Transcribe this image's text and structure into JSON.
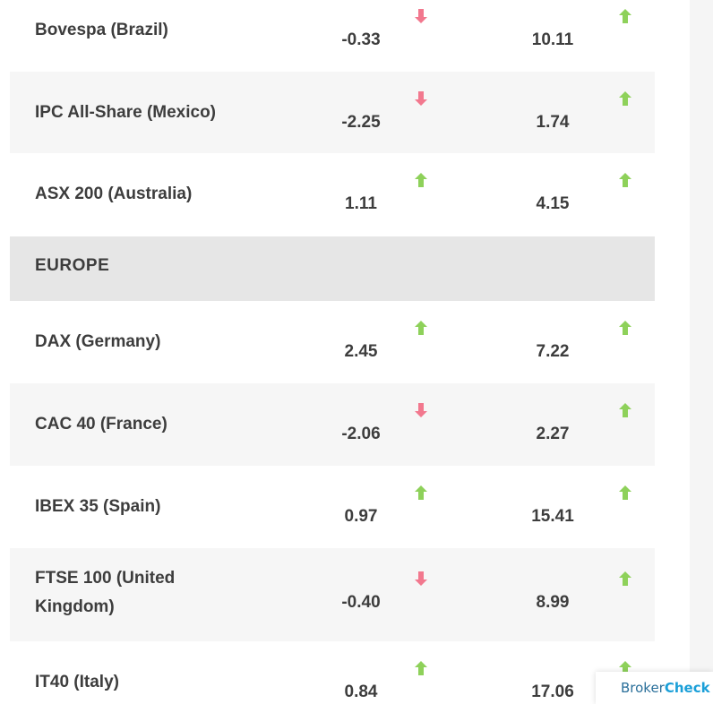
{
  "colors": {
    "up": "#8ed15a",
    "down": "#f2788e",
    "text": "#3d3d3d",
    "alt_row": "#f6f6f6",
    "region_row": "#e6e6e6"
  },
  "rows_top": [
    {
      "name": "Bovespa (Brazil)",
      "v1": "-0.33",
      "d1": "down",
      "v2": "10.11",
      "d2": "up"
    },
    {
      "name": "IPC All-Share (Mexico)",
      "v1": "-2.25",
      "d1": "down",
      "v2": "1.74",
      "d2": "up"
    },
    {
      "name": "ASX 200 (Australia)",
      "v1": "1.11",
      "d1": "up",
      "v2": "4.15",
      "d2": "up"
    }
  ],
  "region": {
    "label": "EUROPE"
  },
  "rows_europe": [
    {
      "name": "DAX (Germany)",
      "v1": "2.45",
      "d1": "up",
      "v2": "7.22",
      "d2": "up"
    },
    {
      "name": "CAC 40 (France)",
      "v1": "-2.06",
      "d1": "down",
      "v2": "2.27",
      "d2": "up"
    },
    {
      "name": "IBEX 35 (Spain)",
      "v1": "0.97",
      "d1": "up",
      "v2": "15.41",
      "d2": "up"
    },
    {
      "name_line1": "FTSE 100 (United",
      "name_line2": "Kingdom)",
      "v1": "-0.40",
      "d1": "down",
      "v2": "8.99",
      "d2": "up"
    },
    {
      "name": "IT40 (Italy)",
      "v1": "0.84",
      "d1": "up",
      "v2": "17.06",
      "d2": "up"
    }
  ],
  "badge": {
    "part1": "Broker",
    "part2": "Check"
  },
  "icons": {
    "up": "arrow-up-icon",
    "down": "arrow-down-icon"
  }
}
